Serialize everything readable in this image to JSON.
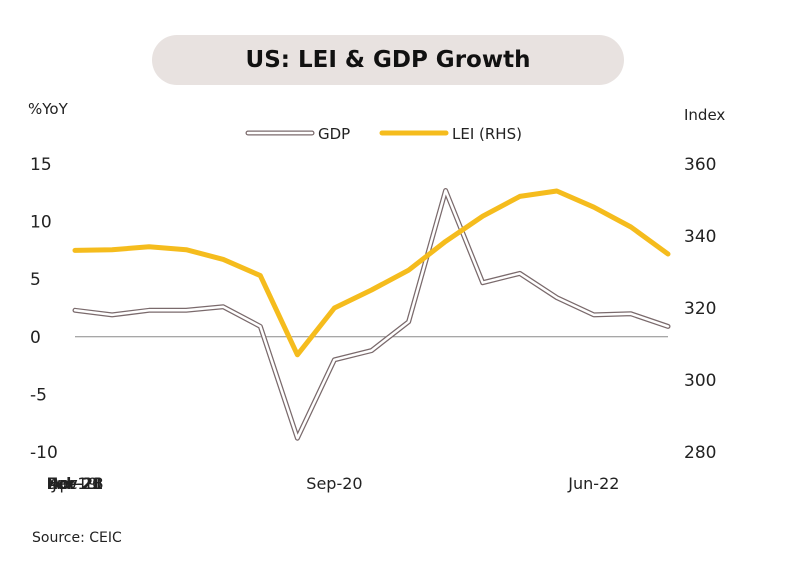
{
  "source": "Source: CEIC",
  "chart_data": {
    "type": "line",
    "title": "US: LEI & GDP Growth",
    "y_left_label": "%YoY",
    "y_right_label": "Index",
    "y_left_range": [
      -10,
      15
    ],
    "y_right_range": [
      280,
      360
    ],
    "y_left_ticks": [
      -10,
      -5,
      0,
      5,
      10,
      15
    ],
    "y_right_ticks": [
      280,
      300,
      320,
      340,
      360
    ],
    "x_tick_labels": [
      "Dec-18",
      "Jul-19",
      "Feb-20",
      "Sep-20",
      "Apr-21",
      "Nov-21",
      "Jun-22"
    ],
    "x": [
      "Dec-18",
      "Mar-19",
      "Jun-19",
      "Sep-19",
      "Dec-19",
      "Mar-20",
      "Jun-20",
      "Sep-20",
      "Dec-20",
      "Mar-21",
      "Jun-21",
      "Sep-21",
      "Dec-21",
      "Mar-22",
      "Jun-22",
      "Sep-22",
      "Dec-22"
    ],
    "grid": false,
    "legend_position": "top-center",
    "series": [
      {
        "name": "GDP",
        "axis": "left",
        "style": "outline",
        "color": "#7a6a6c",
        "values": [
          2.3,
          1.9,
          2.3,
          2.3,
          2.6,
          0.9,
          -8.8,
          -2.0,
          -1.2,
          1.3,
          12.7,
          4.7,
          5.5,
          3.4,
          1.9,
          2.0,
          0.9
        ]
      },
      {
        "name": "LEI (RHS)",
        "axis": "right",
        "style": "solid",
        "color": "#f5bc1d",
        "values": [
          336.0,
          336.2,
          337.0,
          336.2,
          333.5,
          329.0,
          307.0,
          320.0,
          325.0,
          330.5,
          338.5,
          345.5,
          351.0,
          352.5,
          348.0,
          342.5,
          335.0
        ]
      }
    ]
  }
}
